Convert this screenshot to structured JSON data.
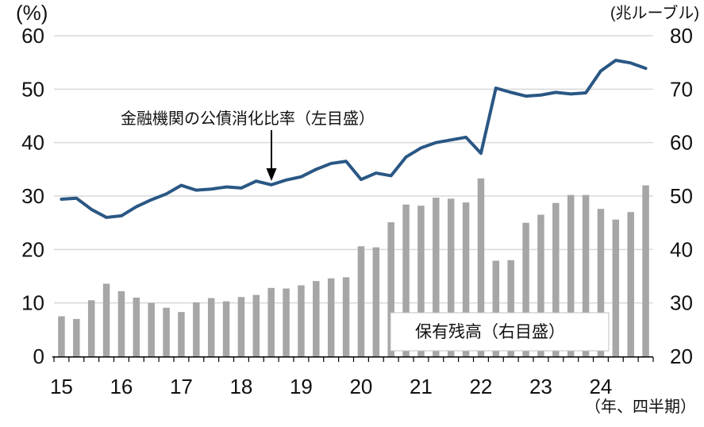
{
  "chart": {
    "left_unit": "(%)",
    "right_unit": "(兆ルーブル)",
    "x_note": "（年、四半期）",
    "annotation_line": "金融機関の公債消化比率（左目盛）",
    "legend_bars": "保有残高（右目盛）"
  },
  "colors": {
    "line": "#2a5784",
    "bar": "#a6a6a6",
    "grid": "#d9d9d9",
    "axis": "#000000",
    "legend_border": "#bfbfbf"
  },
  "chart_data": {
    "type": "line+bar",
    "title": "",
    "x": [
      "15Q1",
      "15Q2",
      "15Q3",
      "15Q4",
      "16Q1",
      "16Q2",
      "16Q3",
      "16Q4",
      "17Q1",
      "17Q2",
      "17Q3",
      "17Q4",
      "18Q1",
      "18Q2",
      "18Q3",
      "18Q4",
      "19Q1",
      "19Q2",
      "19Q3",
      "19Q4",
      "20Q1",
      "20Q2",
      "20Q3",
      "20Q4",
      "21Q1",
      "21Q2",
      "21Q3",
      "21Q4",
      "22Q1",
      "22Q2",
      "22Q3",
      "22Q4",
      "23Q1",
      "23Q2",
      "23Q3",
      "23Q4",
      "24Q1",
      "24Q2",
      "24Q3",
      "24Q4"
    ],
    "x_year_labels": [
      "15",
      "16",
      "17",
      "18",
      "19",
      "20",
      "21",
      "22",
      "23",
      "24"
    ],
    "xlabel": "（年、四半期）",
    "left_axis": {
      "unit": "(%)",
      "range": [
        0,
        60
      ],
      "ticks": [
        0,
        10,
        20,
        30,
        40,
        50,
        60
      ]
    },
    "right_axis": {
      "unit": "(兆ルーブル)",
      "range": [
        20,
        80
      ],
      "ticks": [
        20,
        30,
        40,
        50,
        60,
        70,
        80
      ]
    },
    "grid": "horizontal",
    "legend_position": "inside-lower-right",
    "series": [
      {
        "name": "金融機関の公債消化比率（左目盛）",
        "type": "line",
        "axis": "left",
        "values": [
          29.4,
          29.6,
          27.5,
          26.0,
          26.3,
          28.0,
          29.3,
          30.4,
          32.0,
          31.1,
          31.3,
          31.7,
          31.5,
          32.8,
          32.1,
          33.0,
          33.6,
          35.0,
          36.1,
          36.5,
          33.1,
          34.3,
          33.8,
          37.3,
          39.0,
          40.0,
          40.5,
          41.0,
          38.0,
          50.2,
          49.4,
          48.7,
          48.9,
          49.4,
          49.1,
          49.3,
          53.4,
          55.4,
          54.9,
          53.9
        ]
      },
      {
        "name": "保有残高（右目盛）",
        "type": "bar",
        "axis": "right",
        "values": [
          27.5,
          27.0,
          30.5,
          33.6,
          32.2,
          31.0,
          30.0,
          29.1,
          28.3,
          30.1,
          30.9,
          30.3,
          31.1,
          31.5,
          32.8,
          32.7,
          33.3,
          34.1,
          34.6,
          34.8,
          40.6,
          40.4,
          45.1,
          48.4,
          48.2,
          49.7,
          49.5,
          48.8,
          53.3,
          37.9,
          38.0,
          45.0,
          46.5,
          48.7,
          50.2,
          50.2,
          47.6,
          45.6,
          47.0,
          52.0
        ]
      }
    ]
  }
}
